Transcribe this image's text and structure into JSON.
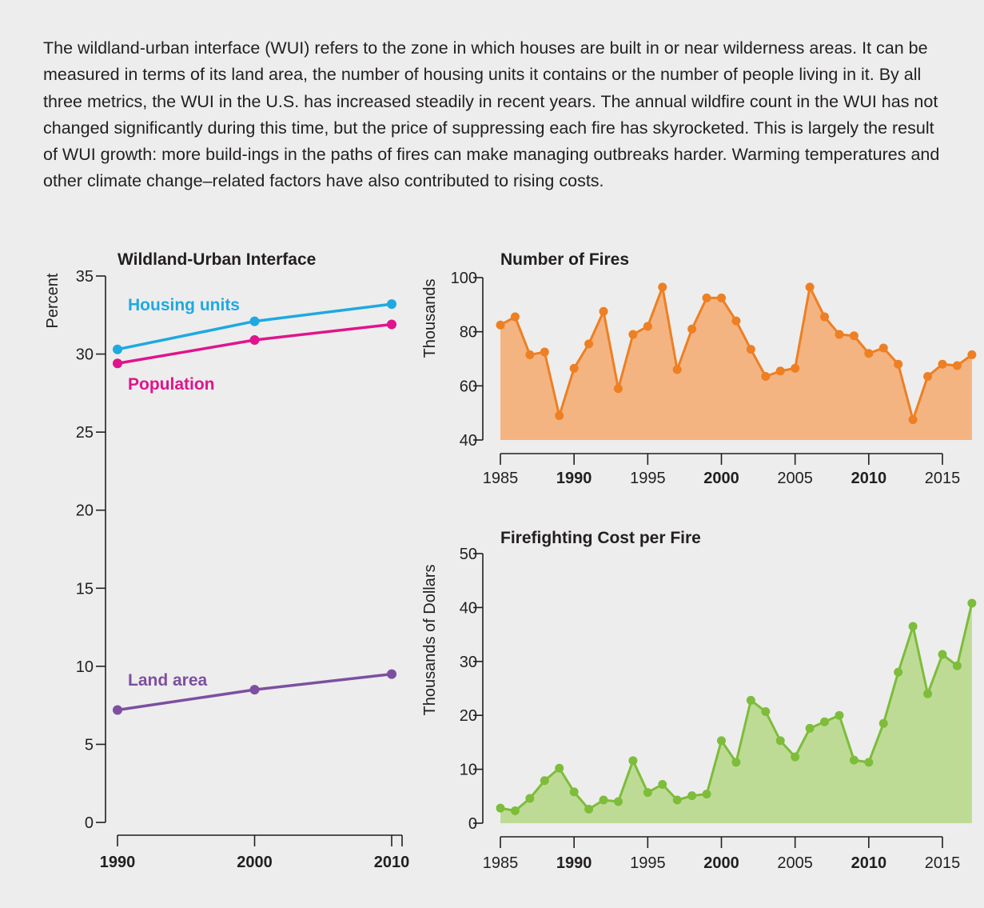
{
  "intro_text": "The wildland-urban interface (WUI) refers to the zone in which houses are built in or near wilderness areas. It can be measured in terms of its land area, the number of housing units it contains or the number of people living in it. By all three metrics, the WUI in the U.S. has increased steadily in recent years. The annual wildfire count in the WUI has not changed significantly during this time, but the price of suppressing each fire has skyrocketed. This is largely the result of WUI growth: more build-ings in the paths of fires can make managing outbreaks harder. Warming temperatures and other climate change–related factors have also contributed to rising costs.",
  "chart_data": [
    {
      "id": "wui",
      "type": "line",
      "title": "Wildland-Urban Interface",
      "ylabel": "Percent",
      "xlabel": "",
      "x": [
        1990,
        2000,
        2010
      ],
      "x_ticks": [
        1990,
        2000,
        2010
      ],
      "x_tick_labels": [
        "1990",
        "2000",
        "2010"
      ],
      "ylim": [
        0,
        35
      ],
      "y_ticks": [
        0,
        5,
        10,
        15,
        20,
        25,
        30,
        35
      ],
      "series": [
        {
          "name": "Housing units",
          "color": "#1ea9e1",
          "values": [
            30.3,
            32.1,
            33.2
          ]
        },
        {
          "name": "Population",
          "color": "#e0148c",
          "values": [
            29.4,
            30.9,
            31.9
          ]
        },
        {
          "name": "Land area",
          "color": "#7d4fa0",
          "values": [
            7.2,
            8.5,
            9.5
          ]
        }
      ]
    },
    {
      "id": "fires",
      "type": "area",
      "title": "Number of Fires",
      "ylabel": "Thousands",
      "xlabel": "",
      "x": [
        1985,
        1986,
        1987,
        1988,
        1989,
        1990,
        1991,
        1992,
        1993,
        1994,
        1995,
        1996,
        1997,
        1998,
        1999,
        2000,
        2001,
        2002,
        2003,
        2004,
        2005,
        2006,
        2007,
        2008,
        2009,
        2010,
        2011,
        2012,
        2013,
        2014,
        2015,
        2016,
        2017
      ],
      "x_ticks": [
        1985,
        1990,
        1995,
        2000,
        2005,
        2010,
        2015
      ],
      "x_tick_labels": [
        "1985",
        "1990",
        "1995",
        "2000",
        "2005",
        "2010",
        "2015"
      ],
      "x_bold_ticks": [
        1990,
        2000,
        2010
      ],
      "ylim": [
        40,
        100
      ],
      "y_ticks": [
        40,
        60,
        80,
        100
      ],
      "series": [
        {
          "color": "#ee7f22",
          "fill": "#f3b482",
          "values": [
            82.5,
            85.5,
            71.5,
            72.5,
            49,
            66.5,
            75.5,
            87.5,
            59,
            79,
            82,
            96.5,
            66,
            81,
            92.5,
            92.5,
            84,
            73.5,
            63.5,
            65.5,
            66.5,
            96.5,
            85.5,
            79,
            78.5,
            72,
            74,
            68,
            47.5,
            63.5,
            68,
            67.5,
            71.5
          ]
        }
      ]
    },
    {
      "id": "cost",
      "type": "area",
      "title": "Firefighting Cost per Fire",
      "ylabel": "Thousands of Dollars",
      "xlabel": "",
      "x": [
        1985,
        1986,
        1987,
        1988,
        1989,
        1990,
        1991,
        1992,
        1993,
        1994,
        1995,
        1996,
        1997,
        1998,
        1999,
        2000,
        2001,
        2002,
        2003,
        2004,
        2005,
        2006,
        2007,
        2008,
        2009,
        2010,
        2011,
        2012,
        2013,
        2014,
        2015,
        2016,
        2017
      ],
      "x_ticks": [
        1985,
        1990,
        1995,
        2000,
        2005,
        2010,
        2015
      ],
      "x_tick_labels": [
        "1985",
        "1990",
        "1995",
        "2000",
        "2005",
        "2010",
        "2015"
      ],
      "x_bold_ticks": [
        1990,
        2000,
        2010
      ],
      "ylim": [
        0,
        50
      ],
      "y_ticks": [
        0,
        10,
        20,
        30,
        40,
        50
      ],
      "series": [
        {
          "color": "#7dbd3a",
          "fill": "#bedb96",
          "values": [
            2.8,
            2.3,
            4.6,
            7.9,
            10.2,
            5.8,
            2.6,
            4.3,
            4.0,
            11.6,
            5.7,
            7.2,
            4.3,
            5.1,
            5.4,
            15.3,
            11.3,
            22.8,
            20.7,
            15.3,
            12.3,
            17.6,
            18.8,
            20.0,
            11.7,
            11.3,
            18.5,
            28.0,
            36.5,
            24.0,
            31.3,
            29.2,
            40.8
          ]
        }
      ]
    }
  ]
}
